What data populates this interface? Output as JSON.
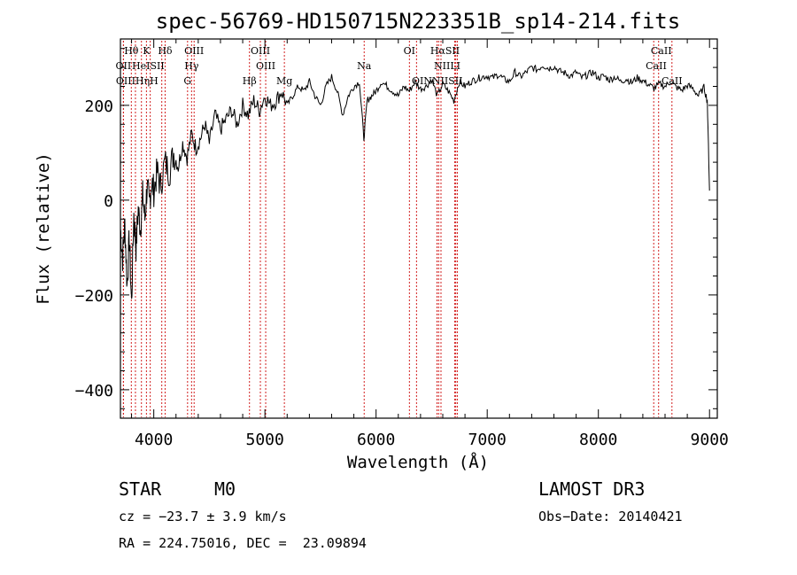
{
  "chart_data": {
    "type": "line",
    "title": "spec-56769-HD150715N223351B_sp14-214.fits",
    "xlabel": "Wavelength (Å)",
    "ylabel": "Flux (relative)",
    "xlim": [
      3700,
      9070
    ],
    "ylim": [
      -460,
      340
    ],
    "x_ticks": [
      4000,
      5000,
      6000,
      7000,
      8000,
      9000
    ],
    "y_ticks": [
      -400,
      -200,
      0,
      200
    ],
    "colors": {
      "spectrum": "#000000",
      "lines": "#d22020",
      "axes": "#000000"
    },
    "series": [
      {
        "name": "flux",
        "x": [
          3700,
          3720,
          3740,
          3760,
          3780,
          3800,
          3820,
          3840,
          3860,
          3880,
          3900,
          3920,
          3940,
          3960,
          3980,
          4000,
          4030,
          4060,
          4100,
          4140,
          4180,
          4220,
          4260,
          4300,
          4340,
          4380,
          4420,
          4460,
          4500,
          4550,
          4600,
          4650,
          4700,
          4750,
          4800,
          4850,
          4900,
          4950,
          5000,
          5050,
          5100,
          5150,
          5200,
          5250,
          5300,
          5350,
          5400,
          5450,
          5500,
          5550,
          5600,
          5650,
          5700,
          5750,
          5800,
          5850,
          5890,
          5920,
          5960,
          6000,
          6050,
          6100,
          6150,
          6200,
          6250,
          6300,
          6350,
          6400,
          6450,
          6500,
          6550,
          6600,
          6650,
          6700,
          6750,
          6800,
          6850,
          6900,
          6950,
          7000,
          7050,
          7100,
          7150,
          7200,
          7250,
          7300,
          7350,
          7400,
          7450,
          7500,
          7550,
          7600,
          7650,
          7700,
          7750,
          7800,
          7850,
          7900,
          7950,
          8000,
          8050,
          8100,
          8150,
          8200,
          8250,
          8300,
          8350,
          8400,
          8450,
          8500,
          8550,
          8600,
          8650,
          8700,
          8750,
          8800,
          8850,
          8900,
          8950,
          8980,
          9000
        ],
        "y": [
          -60,
          -120,
          -50,
          -180,
          -80,
          -220,
          -30,
          -100,
          -20,
          -60,
          10,
          -40,
          30,
          -10,
          40,
          20,
          60,
          30,
          80,
          60,
          100,
          70,
          120,
          90,
          140,
          110,
          130,
          160,
          120,
          180,
          150,
          170,
          190,
          160,
          200,
          180,
          210,
          190,
          220,
          200,
          210,
          230,
          200,
          220,
          240,
          230,
          250,
          220,
          200,
          240,
          260,
          230,
          180,
          220,
          240,
          250,
          130,
          210,
          220,
          230,
          250,
          240,
          230,
          220,
          240,
          230,
          250,
          235,
          240,
          255,
          220,
          245,
          230,
          210,
          250,
          240,
          250,
          255,
          260,
          262,
          258,
          265,
          255,
          250,
          270,
          260,
          270,
          280,
          275,
          285,
          278,
          282,
          272,
          268,
          262,
          270,
          258,
          264,
          270,
          258,
          262,
          254,
          260,
          250,
          256,
          248,
          258,
          252,
          244,
          236,
          245,
          240,
          250,
          238,
          232,
          242,
          236,
          220,
          238,
          210,
          20
        ]
      }
    ],
    "lines": [
      {
        "name": "Hθ",
        "w": 3798
      },
      {
        "name": "OII",
        "w": 3727
      },
      {
        "name": "OIII",
        "w": 3727
      },
      {
        "name": "K",
        "w": 3934
      },
      {
        "name": "HeI",
        "w": 3889
      },
      {
        "name": "Hη",
        "w": 3835
      },
      {
        "name": "H",
        "w": 3968
      },
      {
        "name": "SII",
        "w": 4072
      },
      {
        "name": "Hδ",
        "w": 4102
      },
      {
        "name": "OIII",
        "w": 4363
      },
      {
        "name": "Hγ",
        "w": 4340
      },
      {
        "name": "G",
        "w": 4304
      },
      {
        "name": "Hβ",
        "w": 4861
      },
      {
        "name": "OIII",
        "w": 4959
      },
      {
        "name": "OIII",
        "w": 5007
      },
      {
        "name": "Mg",
        "w": 5175
      },
      {
        "name": "Na",
        "w": 5893
      },
      {
        "name": "OI",
        "w": 6300
      },
      {
        "name": "OI",
        "w": 6364
      },
      {
        "name": "Hα",
        "w": 6563
      },
      {
        "name": "NII",
        "w": 6548
      },
      {
        "name": "NII",
        "w": 6584
      },
      {
        "name": "SII",
        "w": 6717
      },
      {
        "name": "SII",
        "w": 6731
      },
      {
        "name": "LI",
        "w": 6708
      },
      {
        "name": "CaII",
        "w": 8498
      },
      {
        "name": "CaII",
        "w": 8542
      },
      {
        "name": "CaII",
        "w": 8662
      }
    ],
    "line_labels": [
      {
        "text": "Hθ",
        "w": 3798,
        "row": 0
      },
      {
        "text": "K",
        "w": 3934,
        "row": 0
      },
      {
        "text": "Hδ",
        "w": 4102,
        "row": 0
      },
      {
        "text": "OIII",
        "w": 4363,
        "row": 0
      },
      {
        "text": "OIII",
        "w": 4959,
        "row": 0
      },
      {
        "text": "OI",
        "w": 6300,
        "row": 0
      },
      {
        "text": "HαSII",
        "w": 6620,
        "row": 0
      },
      {
        "text": "CaII",
        "w": 8566,
        "row": 0
      },
      {
        "text": "OII",
        "w": 3727,
        "row": 1
      },
      {
        "text": "HeISII",
        "w": 3950,
        "row": 1
      },
      {
        "text": "Hγ",
        "w": 4340,
        "row": 1
      },
      {
        "text": "OIII",
        "w": 5007,
        "row": 1
      },
      {
        "text": "Na",
        "w": 5893,
        "row": 1
      },
      {
        "text": "NIILI",
        "w": 6640,
        "row": 1
      },
      {
        "text": "CaII",
        "w": 8520,
        "row": 1
      },
      {
        "text": "OIIIHηH",
        "w": 3850,
        "row": 2
      },
      {
        "text": "G",
        "w": 4304,
        "row": 2
      },
      {
        "text": "Hβ",
        "w": 4861,
        "row": 2
      },
      {
        "text": "Mg",
        "w": 5175,
        "row": 2
      },
      {
        "text": "OINNIISII",
        "w": 6550,
        "row": 2
      },
      {
        "text": "CaII",
        "w": 8662,
        "row": 2
      }
    ]
  },
  "info": {
    "object_class": "STAR",
    "subclass": "M0",
    "survey": "LAMOST DR3",
    "velocity": "cz = −23.7 ± 3.9 km/s",
    "obs_date": "Obs−Date: 20140421",
    "coords": "RA = 224.75016, DEC =  23.09894"
  }
}
